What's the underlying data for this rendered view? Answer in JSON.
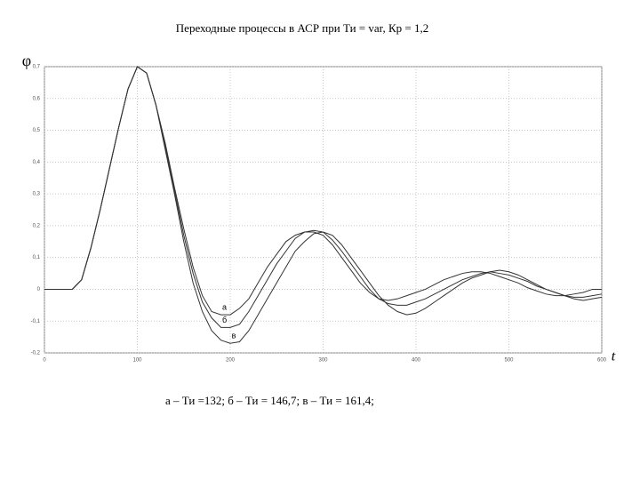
{
  "chart_data": {
    "type": "line",
    "title": "Переходные процессы в АСР при Ти = var, Кр = 1,2",
    "y_label": "φ",
    "x_label": "t",
    "caption": "а – Ти =132; б – Ти = 146,7; в – Ти = 161,4;",
    "x": [
      0,
      10,
      20,
      30,
      40,
      50,
      60,
      70,
      80,
      90,
      100,
      110,
      120,
      130,
      140,
      150,
      160,
      170,
      180,
      190,
      200,
      210,
      220,
      230,
      240,
      250,
      260,
      270,
      280,
      290,
      300,
      310,
      320,
      330,
      340,
      350,
      360,
      370,
      380,
      390,
      400,
      410,
      420,
      430,
      440,
      450,
      460,
      470,
      480,
      490,
      500,
      510,
      520,
      530,
      540,
      550,
      560,
      570,
      580,
      590,
      600
    ],
    "series": [
      {
        "name": "а",
        "color": "#333333",
        "values": [
          0,
          0,
          0,
          0,
          0.03,
          0.13,
          0.25,
          0.38,
          0.51,
          0.63,
          0.7,
          0.68,
          0.58,
          0.46,
          0.32,
          0.19,
          0.07,
          -0.02,
          -0.07,
          -0.08,
          -0.08,
          -0.06,
          -0.03,
          0.02,
          0.07,
          0.11,
          0.15,
          0.17,
          0.18,
          0.18,
          0.17,
          0.14,
          0.1,
          0.06,
          0.02,
          -0.01,
          -0.03,
          -0.035,
          -0.03,
          -0.02,
          -0.01,
          0,
          0.015,
          0.03,
          0.04,
          0.05,
          0.055,
          0.055,
          0.05,
          0.04,
          0.03,
          0.02,
          0.005,
          -0.005,
          -0.015,
          -0.02,
          -0.02,
          -0.015,
          -0.01,
          0,
          0
        ]
      },
      {
        "name": "б",
        "color": "#333333",
        "values": [
          0,
          0,
          0,
          0,
          0.03,
          0.13,
          0.25,
          0.38,
          0.51,
          0.63,
          0.7,
          0.68,
          0.58,
          0.45,
          0.31,
          0.17,
          0.05,
          -0.04,
          -0.09,
          -0.12,
          -0.12,
          -0.11,
          -0.07,
          -0.02,
          0.03,
          0.08,
          0.12,
          0.16,
          0.18,
          0.185,
          0.18,
          0.155,
          0.12,
          0.08,
          0.04,
          0,
          -0.03,
          -0.045,
          -0.05,
          -0.05,
          -0.04,
          -0.03,
          -0.015,
          0,
          0.015,
          0.03,
          0.04,
          0.05,
          0.055,
          0.05,
          0.045,
          0.035,
          0.025,
          0.01,
          0,
          -0.01,
          -0.02,
          -0.025,
          -0.025,
          -0.02,
          -0.015
        ]
      },
      {
        "name": "в",
        "color": "#333333",
        "values": [
          0,
          0,
          0,
          0,
          0.03,
          0.13,
          0.25,
          0.38,
          0.51,
          0.63,
          0.7,
          0.68,
          0.58,
          0.44,
          0.3,
          0.15,
          0.02,
          -0.07,
          -0.13,
          -0.16,
          -0.17,
          -0.165,
          -0.13,
          -0.08,
          -0.03,
          0.02,
          0.07,
          0.12,
          0.15,
          0.175,
          0.18,
          0.17,
          0.14,
          0.1,
          0.06,
          0.02,
          -0.02,
          -0.05,
          -0.07,
          -0.08,
          -0.075,
          -0.06,
          -0.04,
          -0.02,
          0,
          0.02,
          0.035,
          0.045,
          0.055,
          0.06,
          0.055,
          0.045,
          0.03,
          0.015,
          0,
          -0.01,
          -0.02,
          -0.03,
          -0.035,
          -0.03,
          -0.025
        ]
      }
    ],
    "xlim": [
      0,
      600
    ],
    "xticks": [
      0,
      100,
      200,
      300,
      400,
      500,
      600
    ],
    "ylim": [
      -0.2,
      0.7
    ],
    "yticks": [
      {
        "value": -0.2,
        "label": "-0,2"
      },
      {
        "value": -0.1,
        "label": "-0,1"
      },
      0,
      {
        "value": 0.1,
        "label": "0,1"
      },
      {
        "value": 0.2,
        "label": "0,2"
      },
      {
        "value": 0.3,
        "label": "0,3"
      },
      {
        "value": 0.4,
        "label": "0,4"
      },
      {
        "value": 0.5,
        "label": "0,5"
      },
      {
        "value": 0.6,
        "label": "0,6"
      },
      {
        "value": 0.7,
        "label": "0,7"
      }
    ],
    "grid": true
  }
}
